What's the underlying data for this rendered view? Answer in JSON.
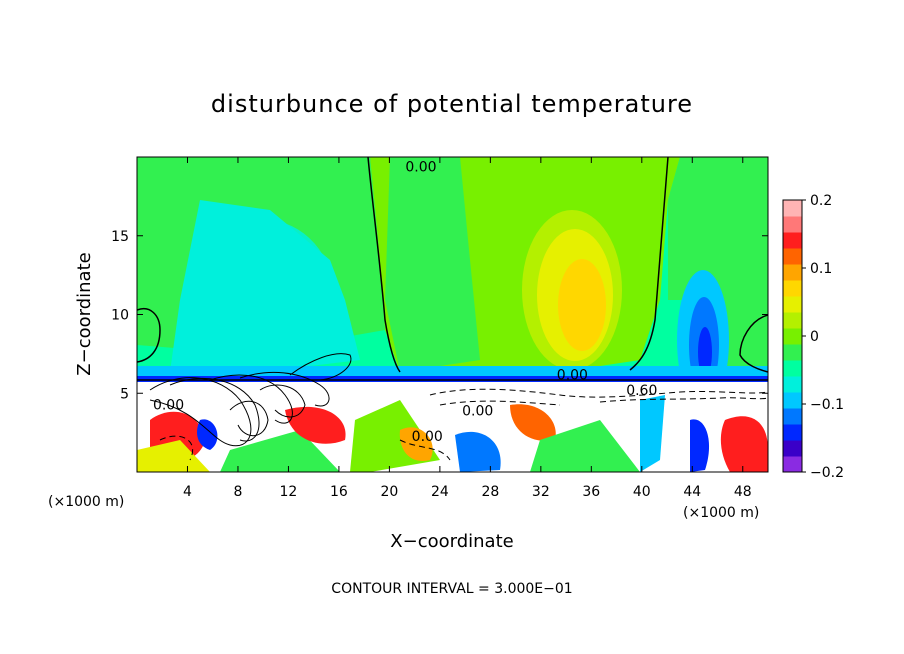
{
  "chart_data": {
    "type": "heatmap",
    "title": "disturbunce of potential temperature",
    "xlabel": "X−coordinate",
    "ylabel": "Z−coordinate",
    "x_unit_left": "(×1000 m)",
    "x_unit_right": "(×1000 m)",
    "footnote": "CONTOUR INTERVAL = 3.000E−01",
    "xlim": [
      0,
      50
    ],
    "ylim": [
      0,
      20
    ],
    "x_ticks": [
      4,
      8,
      12,
      16,
      20,
      24,
      28,
      32,
      36,
      40,
      44,
      48
    ],
    "y_ticks": [
      5,
      10,
      15
    ],
    "colorbar": {
      "range": [
        -0.2,
        0.2
      ],
      "ticks": [
        {
          "value": 0.2,
          "label": "0.2"
        },
        {
          "value": 0.1,
          "label": "0.1"
        },
        {
          "value": 0,
          "label": "0"
        },
        {
          "value": -0.1,
          "label": "−0.1"
        },
        {
          "value": -0.2,
          "label": "−0.2"
        }
      ],
      "colors": [
        "#8a2be2",
        "#3a00c8",
        "#0028ff",
        "#0078ff",
        "#00c8ff",
        "#00f0dc",
        "#00ffa0",
        "#32f050",
        "#78f000",
        "#b4f000",
        "#e6f000",
        "#ffd700",
        "#ffa500",
        "#ff6400",
        "#ff1e1e",
        "#ff7878",
        "#ffb4b4"
      ]
    },
    "contour_labels": [
      {
        "x": 22.5,
        "y": 19.4,
        "text": "0.00"
      },
      {
        "x": 34.5,
        "y": 6.2,
        "text": "0.00"
      },
      {
        "x": 40.0,
        "y": 5.2,
        "text": "0.60"
      },
      {
        "x": 27.0,
        "y": 3.9,
        "text": "0.00"
      },
      {
        "x": 23.0,
        "y": 2.3,
        "text": "0.00"
      },
      {
        "x": 2.5,
        "y": 4.3,
        "text": "0.00"
      }
    ]
  }
}
